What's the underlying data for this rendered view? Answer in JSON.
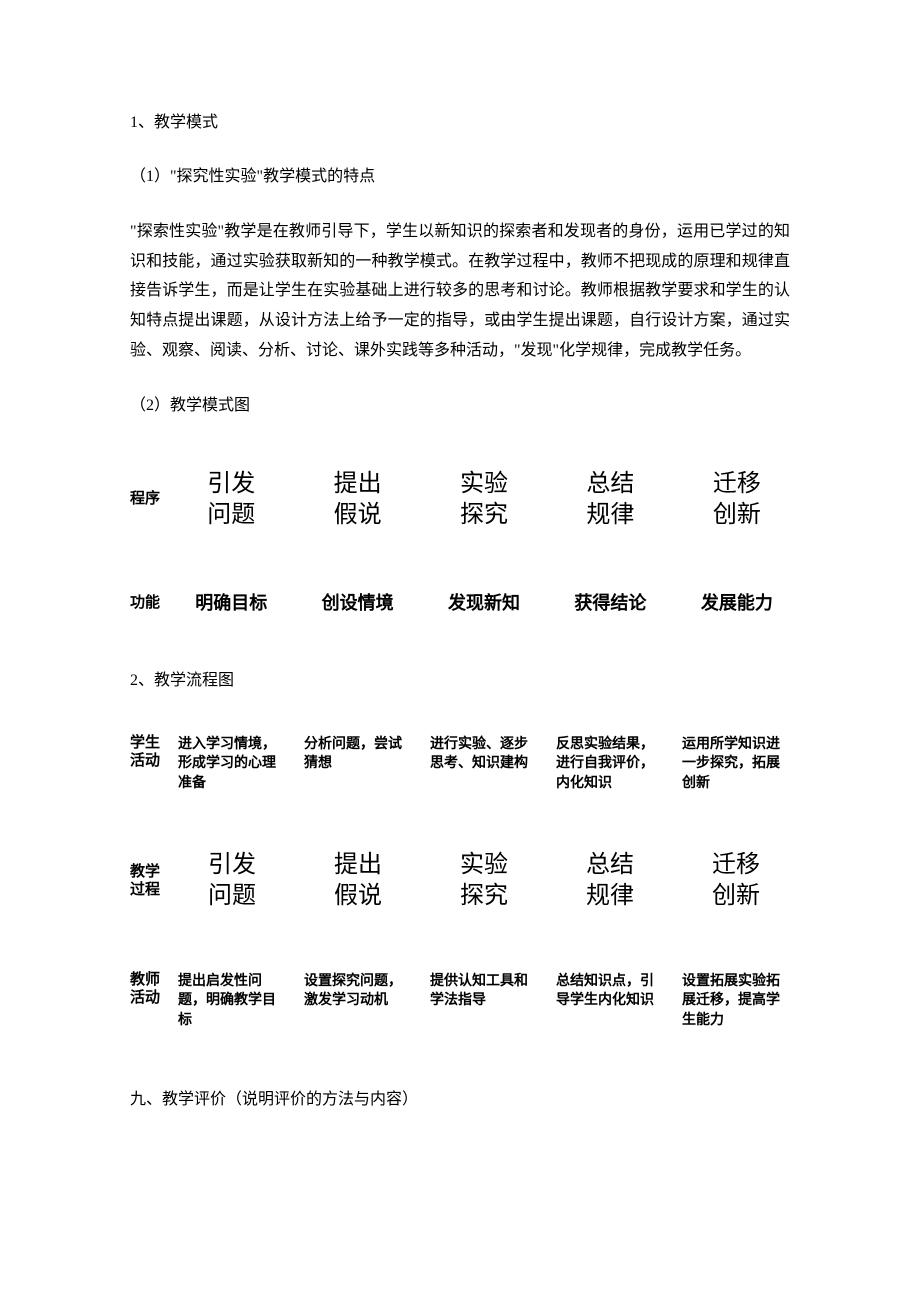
{
  "doc": {
    "h1": "1、教学模式",
    "h1_sub": "（1）\"探究性实验\"教学模式的特点",
    "paragraph": "\"探索性实验\"教学是在教师引导下，学生以新知识的探索者和发现者的身份，运用已学过的知识和技能，通过实验获取新知的一种教学模式。在教学过程中，教师不把现成的原理和规律直接告诉学生，而是让学生在实验基础上进行较多的思考和讨论。教师根据教学要求和学生的认知特点提出课题，从设计方法上给予一定的指导，或由学生提出课题，自行设计方案，通过实验、观察、阅读、分析、讨论、课外实践等多种活动，\"发现\"化学规律，完成教学任务。",
    "h2_sub": "（2）教学模式图",
    "diagram1": {
      "row1_label": "程序",
      "row1_cells": [
        "引发\n问题",
        "提出\n假说",
        "实验\n探究",
        "总结\n规律",
        "迁移\n创新"
      ],
      "row2_label": "功能",
      "row2_cells": [
        "明确目标",
        "创设情境",
        "发现新知",
        "获得结论",
        "发展能力"
      ]
    },
    "h3": "2、教学流程图",
    "diagram2": {
      "row1_label": "学生\n活动",
      "row1_cells": [
        "进入学习情境，形成学习的心理准备",
        "分析问题，尝试猜想",
        "进行实验、逐步思考、知识建构",
        "反思实验结果，进行自我评价，内化知识",
        "运用所学知识进一步探究，拓展创新"
      ],
      "row2_label": "教学\n过程",
      "row2_cells": [
        "引发\n问题",
        "提出\n假说",
        "实验\n探究",
        "总结\n规律",
        "迁移\n创新"
      ],
      "row3_label": "教师\n活动",
      "row3_cells": [
        "提出启发性问题，明确教学目标",
        "设置探究问题，激发学习动机",
        "提供认知工具和学法指导",
        "总结知识点，引导学生内化知识",
        "设置拓展实验拓展迁移，提高学生能力"
      ]
    },
    "bottom": "九、教学评价（说明评价的方法与内容）"
  }
}
